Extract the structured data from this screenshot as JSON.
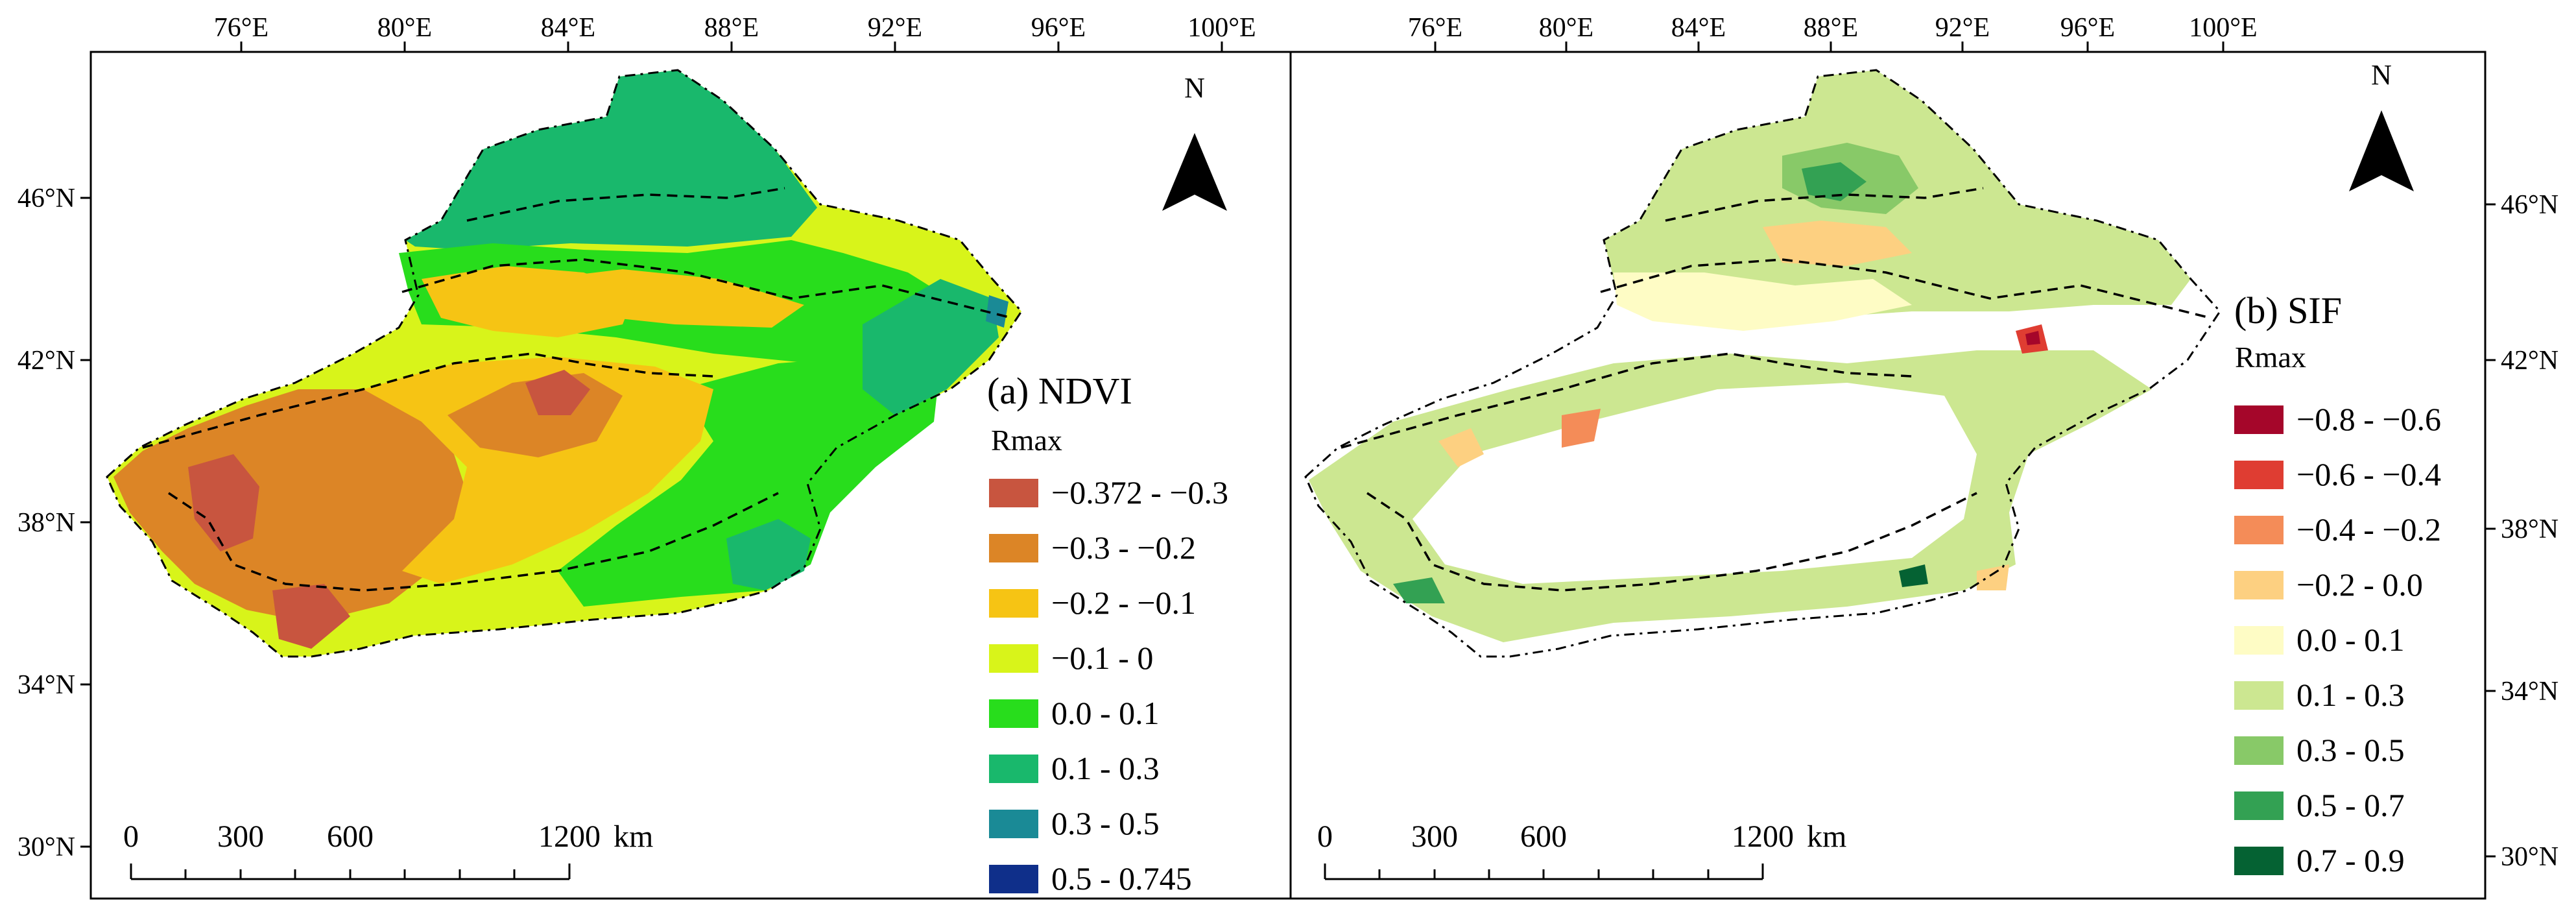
{
  "figure": {
    "lon_labels": [
      "76°E",
      "80°E",
      "84°E",
      "88°E",
      "92°E",
      "96°E",
      "100°E"
    ],
    "lat_labels": [
      "46°N",
      "42°N",
      "38°N",
      "34°N",
      "30°N"
    ]
  },
  "panels": [
    {
      "title": "(a) NDVI",
      "legend_title": "Rmax",
      "north_label": "N",
      "scale": {
        "labels": [
          "0",
          "300",
          "600",
          "1200"
        ],
        "unit": "km"
      },
      "legend": [
        {
          "label": "−0.372 - −0.3",
          "color": "#c8553f"
        },
        {
          "label": "−0.3 - −0.2",
          "color": "#dc8526"
        },
        {
          "label": "−0.2 - −0.1",
          "color": "#f6c414"
        },
        {
          "label": "−0.1 - 0",
          "color": "#d8f41a"
        },
        {
          "label": "0.0 - 0.1",
          "color": "#28dd1c"
        },
        {
          "label": "0.1 - 0.3",
          "color": "#19b86c"
        },
        {
          "label": "0.3 - 0.5",
          "color": "#1a8a96"
        },
        {
          "label": "0.5 - 0.745",
          "color": "#0f2f8a"
        }
      ]
    },
    {
      "title": "(b) SIF",
      "legend_title": "Rmax",
      "north_label": "N",
      "scale": {
        "labels": [
          "0",
          "300",
          "600",
          "1200"
        ],
        "unit": "km"
      },
      "legend": [
        {
          "label": "−0.8 - −0.6",
          "color": "#a5062a"
        },
        {
          "label": "−0.6 - −0.4",
          "color": "#df3d32"
        },
        {
          "label": "−0.4 - −0.2",
          "color": "#f48c58"
        },
        {
          "label": "−0.2 - 0.0",
          "color": "#fdd081"
        },
        {
          "label": "0.0 - 0.1",
          "color": "#fefcc5"
        },
        {
          "label": "0.1 - 0.3",
          "color": "#cce791"
        },
        {
          "label": "0.3 - 0.5",
          "color": "#88c968"
        },
        {
          "label": "0.5 - 0.7",
          "color": "#33a153"
        },
        {
          "label": "0.7 - 0.9",
          "color": "#056233"
        }
      ]
    }
  ]
}
